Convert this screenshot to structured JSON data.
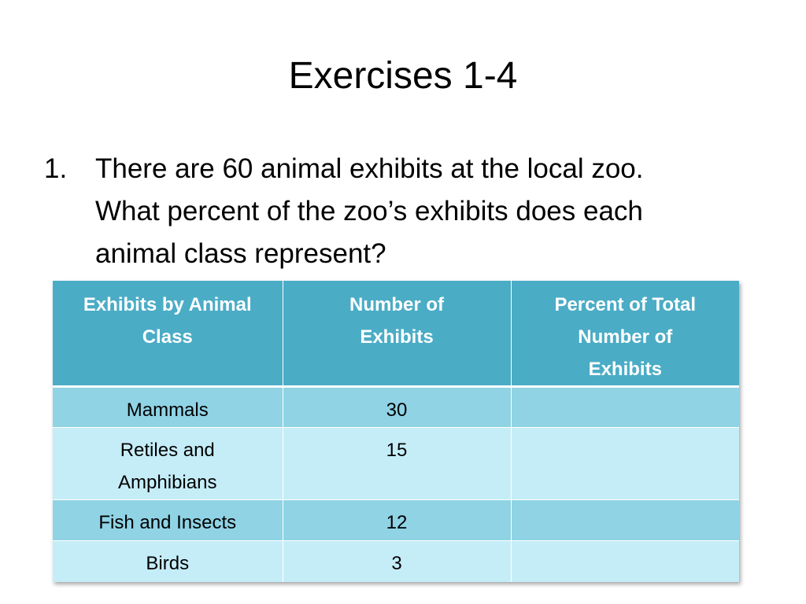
{
  "slide": {
    "title": "Exercises 1-4",
    "question": {
      "number": "1.",
      "lines": [
        "There are 60 animal exhibits at the local zoo.",
        "What percent of the zoo’s exhibits does each",
        "animal class represent?"
      ]
    }
  },
  "table": {
    "headers": [
      [
        "Exhibits by Animal",
        "Class"
      ],
      [
        "Number of",
        "Exhibits"
      ],
      [
        "Percent of Total",
        "Number of",
        "Exhibits"
      ]
    ],
    "rows": [
      {
        "class_lines": [
          "Mammals"
        ],
        "number": "30",
        "percent": ""
      },
      {
        "class_lines": [
          "Retiles and",
          "Amphibians"
        ],
        "number": "15",
        "percent": ""
      },
      {
        "class_lines": [
          "Fish and Insects"
        ],
        "number": "12",
        "percent": ""
      },
      {
        "class_lines": [
          "Birds"
        ],
        "number": "3",
        "percent": ""
      }
    ]
  },
  "colors": {
    "header_bg": "#4bacc6",
    "row_dark": "#8fd3e5",
    "row_light": "#c5edf8"
  }
}
